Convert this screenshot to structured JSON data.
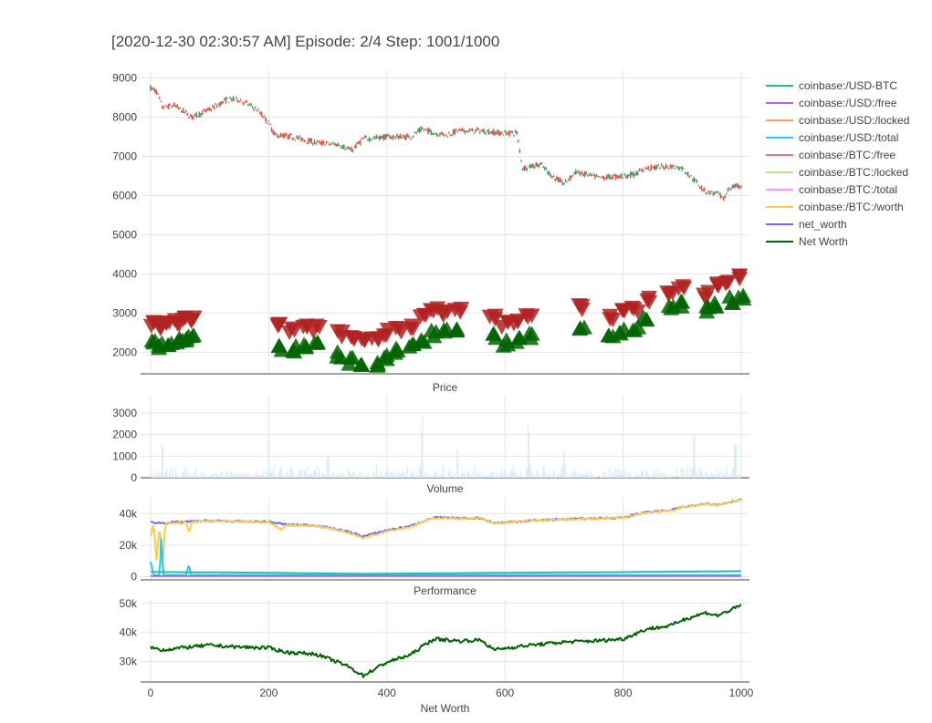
{
  "title": "[2020-12-30 02:30:57 AM] Episode: 2/4 Step: 1001/1000",
  "legend": [
    {
      "name": "coinbase:/USD-BTC",
      "color": "#1fc195"
    },
    {
      "name": "coinbase:/USD:/free",
      "color": "#ab63fa"
    },
    {
      "name": "coinbase:/USD:/locked",
      "color": "#ffa15a"
    },
    {
      "name": "coinbase:/USD:/total",
      "color": "#19d3f3"
    },
    {
      "name": "coinbase:/BTC:/free",
      "color": "#ff6692"
    },
    {
      "name": "coinbase:/BTC:/locked",
      "color": "#b6e880"
    },
    {
      "name": "coinbase:/BTC:/total",
      "color": "#ff97ff"
    },
    {
      "name": "coinbase:/BTC:/worth",
      "color": "#fecb52"
    },
    {
      "name": "net_worth",
      "color": "#636efa"
    },
    {
      "name": "Net Worth",
      "color": "#006400"
    }
  ],
  "chart_data": [
    {
      "type": "candlestick",
      "subplot_label": "Price",
      "x_range": [
        0,
        1000
      ],
      "ylim": [
        1450,
        9200
      ],
      "y_ticks": [
        2000,
        3000,
        4000,
        5000,
        6000,
        7000,
        8000,
        9000
      ],
      "x_ticks": [
        0,
        200,
        400,
        600,
        800,
        1000
      ],
      "close_path": [
        [
          0,
          8750
        ],
        [
          10,
          8650
        ],
        [
          20,
          8250
        ],
        [
          40,
          8300
        ],
        [
          60,
          8100
        ],
        [
          70,
          8000
        ],
        [
          100,
          8200
        ],
        [
          130,
          8450
        ],
        [
          150,
          8450
        ],
        [
          180,
          8200
        ],
        [
          200,
          7850
        ],
        [
          210,
          7550
        ],
        [
          240,
          7500
        ],
        [
          280,
          7350
        ],
        [
          320,
          7300
        ],
        [
          340,
          7150
        ],
        [
          360,
          7450
        ],
        [
          400,
          7500
        ],
        [
          440,
          7500
        ],
        [
          460,
          7700
        ],
        [
          480,
          7600
        ],
        [
          500,
          7550
        ],
        [
          520,
          7650
        ],
        [
          560,
          7650
        ],
        [
          590,
          7600
        ],
        [
          620,
          7600
        ],
        [
          630,
          6700
        ],
        [
          660,
          6800
        ],
        [
          680,
          6500
        ],
        [
          700,
          6300
        ],
        [
          720,
          6600
        ],
        [
          760,
          6450
        ],
        [
          800,
          6500
        ],
        [
          820,
          6550
        ],
        [
          840,
          6700
        ],
        [
          880,
          6750
        ],
        [
          900,
          6700
        ],
        [
          920,
          6400
        ],
        [
          940,
          6100
        ],
        [
          960,
          6050
        ],
        [
          970,
          5900
        ],
        [
          980,
          6200
        ],
        [
          1000,
          6250
        ]
      ],
      "sell_markers": [
        [
          5,
          2700
        ],
        [
          15,
          2650
        ],
        [
          30,
          2700
        ],
        [
          45,
          2750
        ],
        [
          55,
          2800
        ],
        [
          70,
          2850
        ],
        [
          220,
          2650
        ],
        [
          240,
          2550
        ],
        [
          260,
          2600
        ],
        [
          280,
          2600
        ],
        [
          320,
          2450
        ],
        [
          340,
          2350
        ],
        [
          360,
          2300
        ],
        [
          380,
          2350
        ],
        [
          400,
          2500
        ],
        [
          420,
          2600
        ],
        [
          440,
          2650
        ],
        [
          460,
          2900
        ],
        [
          480,
          3050
        ],
        [
          500,
          2950
        ],
        [
          520,
          3050
        ],
        [
          580,
          2850
        ],
        [
          600,
          2700
        ],
        [
          620,
          2750
        ],
        [
          640,
          2950
        ],
        [
          730,
          3150
        ],
        [
          780,
          2900
        ],
        [
          800,
          3000
        ],
        [
          820,
          3050
        ],
        [
          840,
          3350
        ],
        [
          880,
          3550
        ],
        [
          900,
          3600
        ],
        [
          940,
          3450
        ],
        [
          960,
          3700
        ],
        [
          980,
          3800
        ],
        [
          1000,
          3900
        ]
      ],
      "buy_markers": [
        [
          5,
          2250
        ],
        [
          15,
          2200
        ],
        [
          30,
          2250
        ],
        [
          45,
          2300
        ],
        [
          55,
          2300
        ],
        [
          70,
          2400
        ],
        [
          220,
          2150
        ],
        [
          240,
          2100
        ],
        [
          260,
          2150
        ],
        [
          280,
          2200
        ],
        [
          320,
          1950
        ],
        [
          340,
          1800
        ],
        [
          360,
          1650
        ],
        [
          380,
          1750
        ],
        [
          400,
          1900
        ],
        [
          420,
          2050
        ],
        [
          440,
          2150
        ],
        [
          460,
          2350
        ],
        [
          480,
          2500
        ],
        [
          500,
          2550
        ],
        [
          520,
          2600
        ],
        [
          580,
          2400
        ],
        [
          600,
          2250
        ],
        [
          620,
          2350
        ],
        [
          640,
          2450
        ],
        [
          730,
          2650
        ],
        [
          780,
          2500
        ],
        [
          800,
          2550
        ],
        [
          820,
          2650
        ],
        [
          840,
          2900
        ],
        [
          880,
          3200
        ],
        [
          900,
          3250
        ],
        [
          940,
          3100
        ],
        [
          960,
          3250
        ],
        [
          980,
          3350
        ],
        [
          1000,
          3450
        ]
      ],
      "up_color": "#3d9970",
      "down_color": "#e74c3c",
      "sell_color": "#b22222",
      "buy_color": "#006400"
    },
    {
      "type": "bar",
      "subplot_label": "Volume",
      "x_range": [
        0,
        1000
      ],
      "ylim": [
        0,
        3800
      ],
      "y_ticks": [
        0,
        1000,
        2000,
        3000
      ],
      "color": "#daeaf8",
      "spikes": [
        [
          20,
          1700
        ],
        [
          200,
          1850
        ],
        [
          300,
          1100
        ],
        [
          460,
          3100
        ],
        [
          520,
          1500
        ],
        [
          640,
          2700
        ],
        [
          700,
          1400
        ],
        [
          920,
          2350
        ],
        [
          990,
          1600
        ]
      ]
    },
    {
      "type": "line",
      "subplot_label": "Performance",
      "x_range": [
        0,
        1000
      ],
      "ylim": [
        -2000,
        50000
      ],
      "y_ticks": [
        0,
        20000,
        40000
      ],
      "y_tick_labels": [
        "0",
        "20k",
        "40k"
      ],
      "series": [
        {
          "name": "net_worth",
          "color": "#636efa",
          "points": [
            [
              0,
              34500
            ],
            [
              20,
              34000
            ],
            [
              60,
              34800
            ],
            [
              100,
              35500
            ],
            [
              150,
              35000
            ],
            [
              200,
              34800
            ],
            [
              230,
              33000
            ],
            [
              280,
              32500
            ],
            [
              330,
              29000
            ],
            [
              360,
              25500
            ],
            [
              400,
              29500
            ],
            [
              440,
              32000
            ],
            [
              460,
              35000
            ],
            [
              480,
              37500
            ],
            [
              520,
              37000
            ],
            [
              560,
              37200
            ],
            [
              580,
              34000
            ],
            [
              600,
              34500
            ],
            [
              640,
              35500
            ],
            [
              700,
              36500
            ],
            [
              760,
              37000
            ],
            [
              800,
              37500
            ],
            [
              840,
              41000
            ],
            [
              880,
              42000
            ],
            [
              900,
              44000
            ],
            [
              940,
              46500
            ],
            [
              960,
              45500
            ],
            [
              1000,
              49000
            ]
          ]
        },
        {
          "name": "coinbase:/BTC:/worth",
          "color": "#fecb52",
          "points": [
            [
              0,
              26000
            ],
            [
              5,
              34000
            ],
            [
              10,
              10000
            ],
            [
              15,
              33000
            ],
            [
              20,
              5000
            ],
            [
              25,
              34000
            ],
            [
              60,
              34000
            ],
            [
              65,
              28000
            ],
            [
              70,
              34500
            ],
            [
              100,
              35300
            ],
            [
              150,
              34800
            ],
            [
              200,
              34600
            ],
            [
              220,
              30000
            ],
            [
              230,
              32700
            ],
            [
              280,
              32300
            ],
            [
              330,
              28500
            ],
            [
              360,
              24500
            ],
            [
              400,
              29000
            ],
            [
              440,
              31500
            ],
            [
              460,
              34500
            ],
            [
              480,
              37200
            ],
            [
              520,
              36800
            ],
            [
              560,
              37000
            ],
            [
              580,
              33800
            ],
            [
              600,
              34300
            ],
            [
              640,
              35300
            ],
            [
              700,
              36300
            ],
            [
              760,
              36800
            ],
            [
              800,
              37300
            ],
            [
              840,
              40800
            ],
            [
              880,
              41800
            ],
            [
              900,
              43800
            ],
            [
              940,
              46300
            ],
            [
              960,
              45300
            ],
            [
              1000,
              48800
            ]
          ]
        },
        {
          "name": "coinbase:/USD:/total",
          "color": "#19d3f3",
          "points": [
            [
              0,
              9500
            ],
            [
              5,
              1000
            ],
            [
              15,
              1000
            ],
            [
              18,
              24000
            ],
            [
              22,
              1000
            ],
            [
              60,
              1000
            ],
            [
              65,
              8000
            ],
            [
              68,
              1000
            ],
            [
              1000,
              1000
            ]
          ]
        },
        {
          "name": "coinbase:/USD-BTC",
          "color": "#1fc195",
          "points": [
            [
              0,
              3000
            ],
            [
              200,
              2500
            ],
            [
              360,
              1800
            ],
            [
              500,
              2200
            ],
            [
              600,
              2500
            ],
            [
              800,
              2900
            ],
            [
              1000,
              3500
            ]
          ]
        },
        {
          "name": "coinbase:/USD:/free",
          "color": "#ab63fa",
          "points": [
            [
              0,
              500
            ],
            [
              1000,
              500
            ]
          ]
        }
      ]
    },
    {
      "type": "line",
      "subplot_label": "Net Worth",
      "x_range": [
        0,
        1000
      ],
      "ylim": [
        23000,
        51500
      ],
      "y_ticks": [
        30000,
        40000,
        50000
      ],
      "y_tick_labels": [
        "30k",
        "40k",
        "50k"
      ],
      "series": [
        {
          "name": "Net Worth",
          "color": "#006400",
          "points": [
            [
              0,
              34800
            ],
            [
              20,
              34000
            ],
            [
              60,
              34900
            ],
            [
              100,
              35600
            ],
            [
              150,
              35000
            ],
            [
              200,
              34700
            ],
            [
              230,
              33200
            ],
            [
              280,
              32600
            ],
            [
              330,
              28800
            ],
            [
              360,
              25200
            ],
            [
              400,
              29800
            ],
            [
              440,
              32300
            ],
            [
              460,
              35200
            ],
            [
              480,
              37800
            ],
            [
              520,
              37100
            ],
            [
              560,
              37400
            ],
            [
              580,
              34100
            ],
            [
              600,
              34600
            ],
            [
              640,
              35600
            ],
            [
              700,
              36700
            ],
            [
              760,
              37200
            ],
            [
              800,
              37800
            ],
            [
              840,
              41200
            ],
            [
              880,
              42300
            ],
            [
              900,
              44300
            ],
            [
              940,
              46800
            ],
            [
              960,
              45800
            ],
            [
              1000,
              49300
            ]
          ]
        }
      ]
    }
  ]
}
